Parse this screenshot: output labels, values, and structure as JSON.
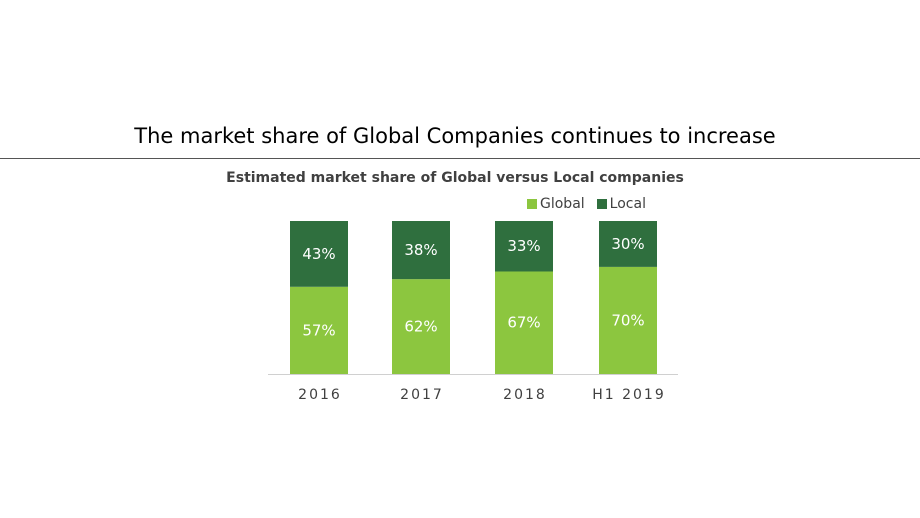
{
  "slide": {
    "title": "The market share of Global Companies continues to increase"
  },
  "chart_data": {
    "type": "bar",
    "stacked": true,
    "title": "Estimated market share of Global versus Local companies",
    "categories": [
      "2016",
      "2017",
      "2018",
      "H1 2019"
    ],
    "series": [
      {
        "name": "Global",
        "color": "#8cc63f",
        "values": [
          57,
          62,
          67,
          70
        ],
        "labels": [
          "57%",
          "62%",
          "67%",
          "70%"
        ]
      },
      {
        "name": "Local",
        "color": "#2f6f3e",
        "values": [
          43,
          38,
          33,
          30
        ],
        "labels": [
          "43%",
          "38%",
          "33%",
          "30%"
        ]
      }
    ],
    "ylim": [
      0,
      100
    ],
    "grid": false,
    "legend": "top-right"
  }
}
